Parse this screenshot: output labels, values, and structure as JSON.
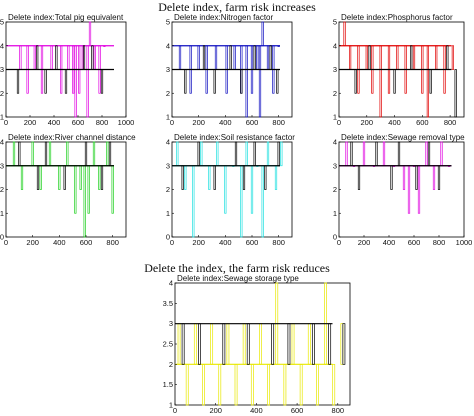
{
  "headings": {
    "top": "Delete index, farm risk increases",
    "bottom": "Delete the index, the farm risk reduces"
  },
  "chart_data": [
    {
      "type": "line",
      "title": "Delete index:Total pig equivalent",
      "color": "#e000e0",
      "x_ticks": [
        "0",
        "200",
        "400",
        "600",
        "800",
        "1000"
      ],
      "y_ticks": [
        "1",
        "2",
        "3",
        "4",
        "5"
      ],
      "xlim": [
        0,
        1000
      ],
      "ylim": [
        1,
        5
      ],
      "series": [
        {
          "color": "#e000e0",
          "baseline": 4,
          "dips": [
            [
              120,
              3
            ],
            [
              180,
              2
            ],
            [
              240,
              3
            ],
            [
              300,
              2
            ],
            [
              380,
              3
            ],
            [
              460,
              2
            ],
            [
              520,
              3
            ],
            [
              560,
              2
            ],
            [
              580,
              1
            ],
            [
              610,
              2
            ],
            [
              640,
              3
            ],
            [
              680,
              1
            ],
            [
              700,
              5
            ],
            [
              740,
              3
            ],
            [
              780,
              2
            ],
            [
              820,
              4
            ]
          ]
        },
        {
          "color": "#000000",
          "baseline": 3,
          "dips": [
            [
              100,
              2
            ],
            [
              260,
              4
            ],
            [
              330,
              2
            ],
            [
              420,
              4
            ],
            [
              500,
              2
            ],
            [
              650,
              4
            ],
            [
              720,
              4
            ],
            [
              800,
              2
            ]
          ]
        }
      ]
    },
    {
      "type": "line",
      "title": "Delete index:Nitrogen factor",
      "color": "#1010c0",
      "x_ticks": [
        "0",
        "200",
        "400",
        "600",
        "800"
      ],
      "y_ticks": [
        "1",
        "2",
        "3",
        "4",
        "5"
      ],
      "xlim": [
        0,
        900
      ],
      "ylim": [
        1,
        5
      ],
      "series": [
        {
          "color": "#1010c0",
          "baseline": 4,
          "dips": [
            [
              60,
              3
            ],
            [
              140,
              2
            ],
            [
              200,
              3
            ],
            [
              260,
              2
            ],
            [
              330,
              3
            ],
            [
              410,
              2
            ],
            [
              470,
              3
            ],
            [
              520,
              2
            ],
            [
              560,
              1
            ],
            [
              600,
              2
            ],
            [
              640,
              3
            ],
            [
              660,
              1
            ],
            [
              680,
              5
            ],
            [
              720,
              3
            ],
            [
              760,
              2
            ],
            [
              800,
              4
            ]
          ]
        },
        {
          "color": "#000000",
          "baseline": 3,
          "dips": [
            [
              100,
              2
            ],
            [
              240,
              4
            ],
            [
              320,
              2
            ],
            [
              440,
              4
            ],
            [
              520,
              2
            ],
            [
              620,
              4
            ],
            [
              740,
              4
            ],
            [
              790,
              2
            ]
          ]
        }
      ]
    },
    {
      "type": "line",
      "title": "Delete index:Phosphorus factor",
      "color": "#e00000",
      "x_ticks": [
        "0",
        "200",
        "400",
        "600",
        "800"
      ],
      "y_ticks": [
        "1",
        "2",
        "3",
        "4",
        "5"
      ],
      "xlim": [
        0,
        900
      ],
      "ylim": [
        1,
        5
      ],
      "series": [
        {
          "color": "#e00000",
          "baseline": 4,
          "dips": [
            [
              40,
              5
            ],
            [
              80,
              3
            ],
            [
              140,
              2
            ],
            [
              200,
              3
            ],
            [
              240,
              2
            ],
            [
              300,
              1
            ],
            [
              360,
              2
            ],
            [
              420,
              3
            ],
            [
              480,
              2
            ],
            [
              540,
              3
            ],
            [
              600,
              2
            ],
            [
              640,
              1
            ],
            [
              700,
              3
            ],
            [
              760,
              2
            ],
            [
              820,
              3
            ]
          ]
        },
        {
          "color": "#000000",
          "baseline": 3,
          "dips": [
            [
              120,
              2
            ],
            [
              220,
              4
            ],
            [
              400,
              2
            ],
            [
              520,
              4
            ],
            [
              660,
              2
            ],
            [
              780,
              4
            ],
            [
              840,
              1
            ]
          ]
        }
      ]
    },
    {
      "type": "line",
      "title": "Delete index:River channel distance",
      "color": "#20d020",
      "x_ticks": [
        "0",
        "200",
        "400",
        "600",
        "800"
      ],
      "y_ticks": [
        "0",
        "1",
        "2",
        "3",
        "4"
      ],
      "xlim": [
        0,
        900
      ],
      "ylim": [
        0,
        4
      ],
      "series": [
        {
          "color": "#20d020",
          "baseline": 3,
          "dips": [
            [
              60,
              4
            ],
            [
              120,
              2
            ],
            [
              200,
              4
            ],
            [
              260,
              2
            ],
            [
              330,
              4
            ],
            [
              400,
              2
            ],
            [
              460,
              4
            ],
            [
              520,
              1
            ],
            [
              560,
              2
            ],
            [
              590,
              0
            ],
            [
              620,
              1
            ],
            [
              660,
              4
            ],
            [
              700,
              2
            ],
            [
              760,
              4
            ],
            [
              800,
              1
            ]
          ]
        },
        {
          "color": "#000000",
          "baseline": 3,
          "dips": [
            [
              100,
              4
            ],
            [
              240,
              2
            ],
            [
              300,
              4
            ],
            [
              440,
              2
            ],
            [
              600,
              4
            ],
            [
              720,
              2
            ],
            [
              780,
              4
            ]
          ]
        }
      ]
    },
    {
      "type": "line",
      "title": "Delete index:Soil resistance factor",
      "color": "#20e0e0",
      "x_ticks": [
        "0",
        "200",
        "400",
        "600",
        "800"
      ],
      "y_ticks": [
        "0",
        "1",
        "2",
        "3",
        "4"
      ],
      "xlim": [
        0,
        900
      ],
      "ylim": [
        0,
        4
      ],
      "series": [
        {
          "color": "#20e0e0",
          "baseline": 3,
          "dips": [
            [
              40,
              4
            ],
            [
              100,
              2
            ],
            [
              160,
              0
            ],
            [
              220,
              4
            ],
            [
              280,
              2
            ],
            [
              340,
              4
            ],
            [
              400,
              1
            ],
            [
              460,
              3
            ],
            [
              520,
              0
            ],
            [
              560,
              4
            ],
            [
              600,
              1
            ],
            [
              640,
              3
            ],
            [
              680,
              0
            ],
            [
              720,
              4
            ],
            [
              780,
              2
            ],
            [
              820,
              4
            ]
          ]
        },
        {
          "color": "#000000",
          "baseline": 3,
          "dips": [
            [
              80,
              2
            ],
            [
              200,
              4
            ],
            [
              320,
              2
            ],
            [
              480,
              4
            ],
            [
              540,
              2
            ],
            [
              620,
              4
            ],
            [
              700,
              2
            ],
            [
              800,
              4
            ]
          ]
        }
      ]
    },
    {
      "type": "line",
      "title": "Delete index:Sewage removal type",
      "color": "#e000e0",
      "x_ticks": [
        "0",
        "200",
        "400",
        "600",
        "800",
        "1000"
      ],
      "y_ticks": [
        "0",
        "1",
        "2",
        "3",
        "4"
      ],
      "xlim": [
        0,
        1000
      ],
      "ylim": [
        0,
        4
      ],
      "series": [
        {
          "color": "#e000e0",
          "baseline": 3,
          "dips": [
            [
              60,
              4
            ],
            [
              120,
              3
            ],
            [
              200,
              4
            ],
            [
              280,
              3
            ],
            [
              360,
              4
            ],
            [
              440,
              3
            ],
            [
              520,
              2
            ],
            [
              560,
              1
            ],
            [
              600,
              3
            ],
            [
              640,
              1
            ],
            [
              700,
              4
            ],
            [
              760,
              2
            ],
            [
              820,
              4
            ],
            [
              880,
              3
            ]
          ]
        },
        {
          "color": "#000000",
          "baseline": 3,
          "dips": [
            [
              100,
              4
            ],
            [
              160,
              2
            ],
            [
              300,
              4
            ],
            [
              420,
              2
            ],
            [
              480,
              4
            ],
            [
              620,
              2
            ],
            [
              720,
              4
            ],
            [
              800,
              2
            ]
          ]
        }
      ]
    },
    {
      "type": "line",
      "title": "Delete index:Sewage storage type",
      "color": "#e8e800",
      "x_ticks": [
        "0",
        "200",
        "400",
        "600",
        "800"
      ],
      "y_ticks": [
        "1",
        "1.5",
        "2",
        "2.5",
        "3",
        "3.5",
        "4"
      ],
      "xlim": [
        0,
        860
      ],
      "ylim": [
        1,
        4
      ],
      "series": [
        {
          "color": "#e8e800",
          "baseline": 2,
          "dips": [
            [
              20,
              3
            ],
            [
              60,
              1
            ],
            [
              100,
              3
            ],
            [
              140,
              1
            ],
            [
              180,
              3
            ],
            [
              220,
              1
            ],
            [
              260,
              3
            ],
            [
              300,
              1
            ],
            [
              340,
              3
            ],
            [
              380,
              1
            ],
            [
              420,
              3
            ],
            [
              460,
              1
            ],
            [
              500,
              4
            ],
            [
              540,
              1
            ],
            [
              580,
              3
            ],
            [
              620,
              1
            ],
            [
              660,
              3
            ],
            [
              700,
              1
            ],
            [
              740,
              4
            ],
            [
              780,
              1
            ],
            [
              820,
              3
            ]
          ]
        },
        {
          "color": "#000000",
          "baseline": 3,
          "dips": [
            [
              40,
              2
            ],
            [
              120,
              2
            ],
            [
              240,
              2
            ],
            [
              360,
              2
            ],
            [
              480,
              2
            ],
            [
              560,
              2
            ],
            [
              680,
              2
            ],
            [
              760,
              2
            ],
            [
              830,
              2
            ]
          ]
        }
      ]
    }
  ]
}
